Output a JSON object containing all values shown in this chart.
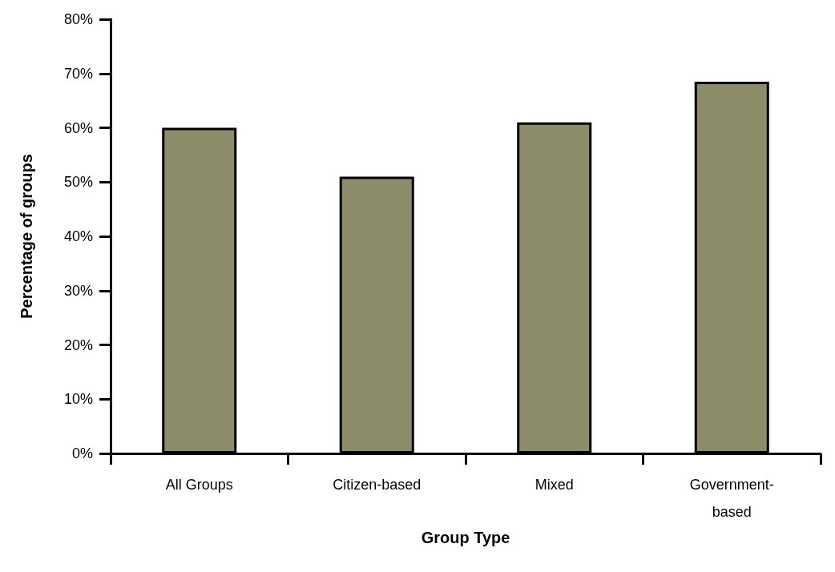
{
  "chart_data": {
    "type": "bar",
    "xlabel": "Group Type",
    "ylabel": "Percentage of groups",
    "categories": [
      "All Groups",
      "Citizen-based",
      "Mixed",
      "Government-based"
    ],
    "values": [
      60,
      51,
      61,
      68.5
    ],
    "color": "#8c8c6a",
    "ylim": [
      0,
      80
    ],
    "yticks": [
      {
        "value": 0,
        "label": "0%"
      },
      {
        "value": 10,
        "label": "10%"
      },
      {
        "value": 20,
        "label": "20%"
      },
      {
        "value": 30,
        "label": "30%"
      },
      {
        "value": 40,
        "label": "40%"
      },
      {
        "value": 50,
        "label": "50%"
      },
      {
        "value": 60,
        "label": "60%"
      },
      {
        "value": 70,
        "label": "70%"
      },
      {
        "value": 80,
        "label": "80%"
      }
    ],
    "grid": false
  }
}
